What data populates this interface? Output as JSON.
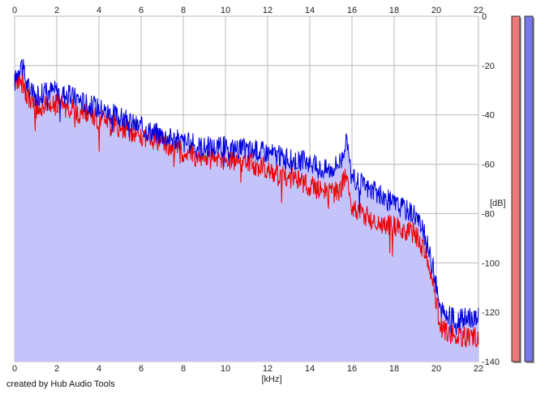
{
  "chart_data": {
    "type": "area",
    "xlabel": "[kHz]",
    "ylabel": "[dB]",
    "xlim": [
      0,
      22
    ],
    "ylim": [
      -140,
      0
    ],
    "x_ticks": [
      0,
      2,
      4,
      6,
      8,
      10,
      12,
      14,
      16,
      18,
      20,
      22
    ],
    "y_ticks": [
      0,
      -20,
      -40,
      -60,
      -80,
      -100,
      -120,
      -140
    ],
    "grid": true,
    "fill_color": "#c4c4fb",
    "x": [
      0,
      0.3,
      0.6,
      1,
      1.5,
      2,
      2.5,
      3,
      3.5,
      4,
      5,
      6,
      7,
      8,
      9,
      10,
      11,
      12,
      13,
      14,
      14.5,
      15,
      15.5,
      15.7,
      16,
      17,
      18,
      19,
      19.5,
      19.9,
      20.2,
      21,
      22
    ],
    "series": [
      {
        "name": "",
        "color": "#0000dd",
        "values": [
          -27,
          -18,
          -28,
          -33,
          -30,
          -30,
          -32,
          -33,
          -36,
          -37,
          -41,
          -45,
          -48,
          -51,
          -53,
          -53,
          -54,
          -55,
          -58,
          -59,
          -62,
          -62,
          -58,
          -50,
          -66,
          -71,
          -76,
          -80,
          -90,
          -104,
          -120,
          -123,
          -122
        ]
      },
      {
        "name": "",
        "color": "#ee0000",
        "values": [
          -27,
          -24,
          -32,
          -38,
          -35,
          -36,
          -37,
          -39,
          -40,
          -42,
          -45,
          -48,
          -51,
          -55,
          -58,
          -58,
          -59,
          -62,
          -65,
          -69,
          -70,
          -72,
          -70,
          -63,
          -77,
          -83,
          -85,
          -88,
          -97,
          -110,
          -126,
          -130,
          -130
        ]
      }
    ],
    "level_meters": [
      {
        "name": "",
        "color": "#ee7777",
        "level_db": 0
      },
      {
        "name": "",
        "color": "#7777ee",
        "level_db": 0
      }
    ]
  },
  "footer": {
    "credit": "created by Hub Audio Tools"
  }
}
